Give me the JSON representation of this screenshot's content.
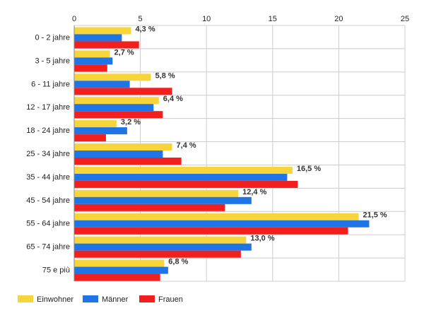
{
  "chart_data": {
    "type": "bar",
    "orientation": "horizontal",
    "categories": [
      "0 - 2 jahre",
      "3 - 5 jahre",
      "6 - 11 jahre",
      "12 - 17 jahre",
      "18 - 24 jahre",
      "25 - 34 jahre",
      "35 - 44 jahre",
      "45 - 54 jahre",
      "55 - 64 jahre",
      "65 - 74 jahre",
      "75 e più"
    ],
    "series": [
      {
        "name": "Einwohner",
        "color": "#f7d43a",
        "values": [
          4.3,
          2.7,
          5.8,
          6.4,
          3.2,
          7.4,
          16.5,
          12.4,
          21.5,
          13.0,
          6.8
        ]
      },
      {
        "name": "Männer",
        "color": "#1f74e6",
        "values": [
          3.6,
          2.9,
          4.2,
          6.0,
          4.0,
          6.7,
          16.1,
          13.4,
          22.3,
          13.4,
          7.1
        ]
      },
      {
        "name": "Frauen",
        "color": "#f21f1f",
        "values": [
          4.9,
          2.5,
          7.4,
          6.7,
          2.4,
          8.1,
          16.9,
          11.4,
          20.7,
          12.6,
          6.5
        ]
      }
    ],
    "data_labels": [
      "4,3 %",
      "2,7 %",
      "5,8 %",
      "6,4 %",
      "3,2 %",
      "7,4 %",
      "16,5 %",
      "12,4 %",
      "21,5 %",
      "13,0 %",
      "6,8 %"
    ],
    "x_ticks": [
      "0",
      "5",
      "10",
      "15",
      "20",
      "25"
    ],
    "xlim": [
      0,
      25
    ],
    "x_axis_position": "top",
    "grid": true,
    "legend_position": "bottom-left"
  }
}
